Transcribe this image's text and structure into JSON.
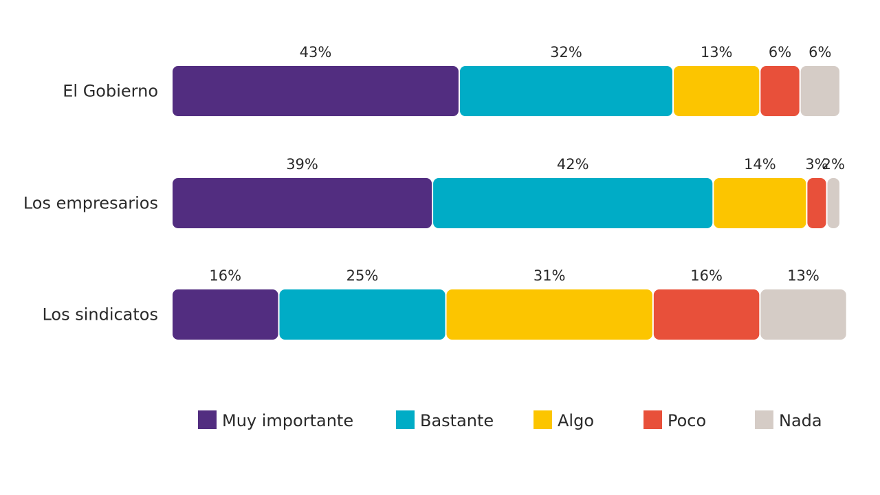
{
  "chart_data": {
    "type": "bar",
    "orientation": "horizontal",
    "stacked": true,
    "title": "",
    "xlabel": "",
    "ylabel": "",
    "xlim": [
      0,
      100
    ],
    "grid": false,
    "legend_position": "bottom",
    "categories": [
      "El Gobierno",
      "Los empresarios",
      "Los sindicatos"
    ],
    "series": [
      {
        "name": "Muy importante",
        "color": "#522D80",
        "values": [
          43,
          39,
          16
        ],
        "labels": [
          "43%",
          "39%",
          "16%"
        ]
      },
      {
        "name": "Bastante",
        "color": "#00ACC6",
        "values": [
          32,
          42,
          25
        ],
        "labels": [
          "32%",
          "42%",
          "25%"
        ]
      },
      {
        "name": "Algo",
        "color": "#FCC500",
        "values": [
          13,
          14,
          31
        ],
        "labels": [
          "13%",
          "14%",
          "31%"
        ]
      },
      {
        "name": "Poco",
        "color": "#E8503A",
        "values": [
          6,
          3,
          16
        ],
        "labels": [
          "6%",
          "3%",
          "16%"
        ]
      },
      {
        "name": "Nada",
        "color": "#D5CCC6",
        "values": [
          6,
          2,
          13
        ],
        "labels": [
          "6%",
          "2%",
          "13%"
        ]
      }
    ]
  }
}
